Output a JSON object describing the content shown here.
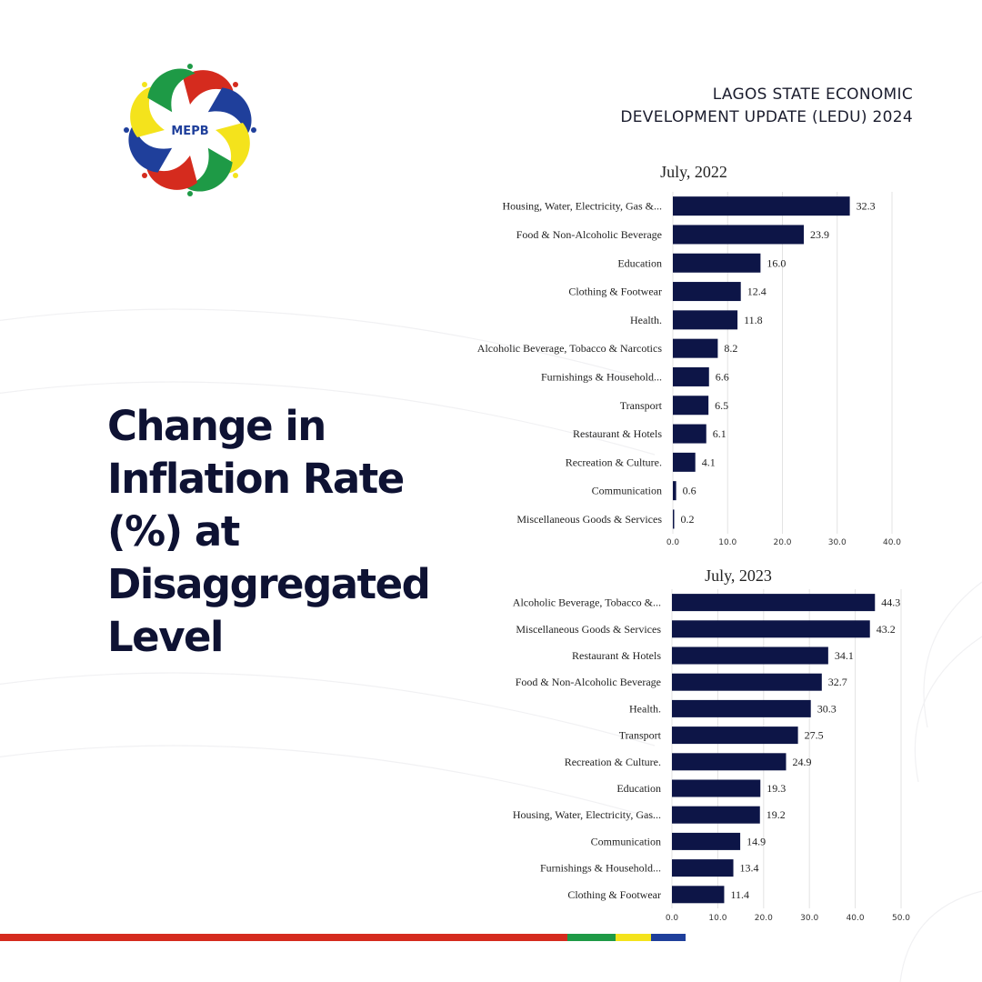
{
  "header": {
    "title_line1": "LAGOS STATE ECONOMIC",
    "title_line2": "DEVELOPMENT UPDATE (LEDU) 2024"
  },
  "logo": {
    "text": "MEPB",
    "icon": "mepb-pinwheel-logo"
  },
  "heading": {
    "line1": "Change in",
    "line2": "Inflation Rate",
    "line3": "(%) at",
    "line4": "Disaggregated",
    "line5": "Level"
  },
  "colors": {
    "bar": "#0d1547",
    "heading": "#0e1233",
    "stripe_red": "#d52b1e",
    "stripe_green": "#1e9a46",
    "stripe_yellow": "#f4e31c",
    "stripe_blue": "#1f3f9b"
  },
  "chart_data": [
    {
      "type": "bar",
      "orientation": "horizontal",
      "title": "July, 2022",
      "categories": [
        "Housing, Water, Electricity, Gas &...",
        "Food & Non-Alcoholic Beverage",
        "Education",
        "Clothing & Footwear",
        "Health.",
        "Alcoholic Beverage, Tobacco & Narcotics",
        "Furnishings & Household...",
        "Transport",
        "Restaurant & Hotels",
        "Recreation & Culture.",
        "Communication",
        "Miscellaneous Goods & Services"
      ],
      "values": [
        32.3,
        23.9,
        16.0,
        12.4,
        11.8,
        8.2,
        6.6,
        6.5,
        6.1,
        4.1,
        0.6,
        0.2
      ],
      "value_labels": [
        "32.3",
        "23.9",
        "16.0",
        "12.4",
        "11.8",
        "8.2",
        "6.6",
        "6.5",
        "6.1",
        "4.1",
        "0.6",
        "0.2"
      ],
      "xlim": [
        0,
        40
      ],
      "ticks": [
        "0.0",
        "10.0",
        "20.0",
        "30.0",
        "40.0"
      ],
      "grid": true
    },
    {
      "type": "bar",
      "orientation": "horizontal",
      "title": "July, 2023",
      "categories": [
        "Alcoholic Beverage, Tobacco &...",
        "Miscellaneous Goods & Services",
        "Restaurant & Hotels",
        "Food & Non-Alcoholic Beverage",
        "Health.",
        "Transport",
        "Recreation & Culture.",
        "Education",
        "Housing, Water, Electricity, Gas...",
        "Communication",
        "Furnishings & Household...",
        "Clothing & Footwear"
      ],
      "values": [
        44.3,
        43.2,
        34.1,
        32.7,
        30.3,
        27.5,
        24.9,
        19.3,
        19.2,
        14.9,
        13.4,
        11.4
      ],
      "value_labels": [
        "44.3",
        "43.2",
        "34.1",
        "32.7",
        "30.3",
        "27.5",
        "24.9",
        "19.3",
        "19.2",
        "14.9",
        "13.4",
        "11.4"
      ],
      "xlim": [
        0,
        50
      ],
      "ticks": [
        "0.0",
        "10.0",
        "20.0",
        "30.0",
        "40.0",
        "50.0"
      ],
      "grid": true
    }
  ]
}
